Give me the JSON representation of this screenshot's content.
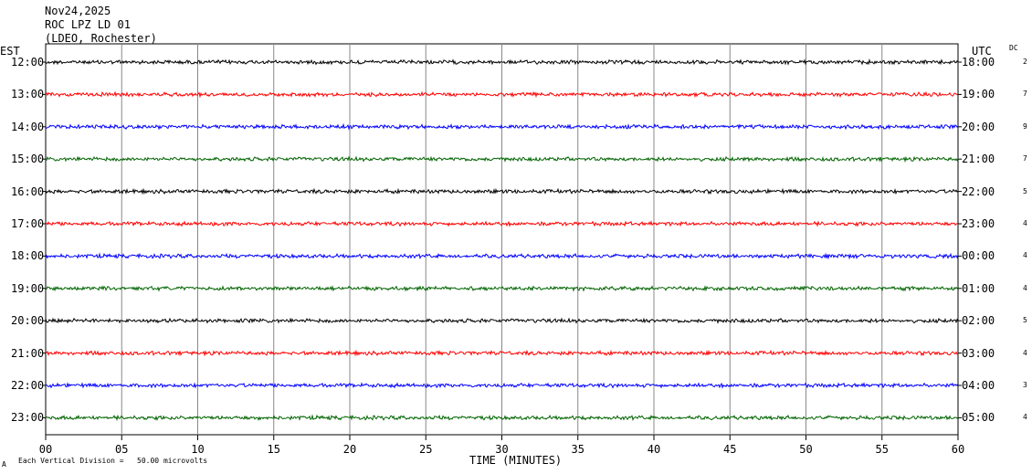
{
  "header": {
    "date": "Nov24,2025",
    "station": "ROC LPZ LD 01",
    "network": "(LDEO, Rochester)"
  },
  "axes": {
    "left_zone": "EST",
    "right_zone": "UTC",
    "dc_label": "DC",
    "xlabel": "TIME (MINUTES)",
    "footer": "Each Vertical Division =   50.00 microvolts",
    "footer_mark": "A"
  },
  "chart_data": {
    "type": "line",
    "title": "",
    "xlabel": "TIME (MINUTES)",
    "xlim": [
      0,
      60
    ],
    "x_ticks": [
      "00",
      "05",
      "10",
      "15",
      "20",
      "25",
      "30",
      "35",
      "40",
      "45",
      "50",
      "55",
      "60"
    ],
    "grid": true,
    "rows": [
      {
        "est": "12:00",
        "utc": "18:00",
        "dc": "2",
        "color": "#000000"
      },
      {
        "est": "13:00",
        "utc": "19:00",
        "dc": "7",
        "color": "#ff0000"
      },
      {
        "est": "14:00",
        "utc": "20:00",
        "dc": "9",
        "color": "#0000ff"
      },
      {
        "est": "15:00",
        "utc": "21:00",
        "dc": "7",
        "color": "#006400"
      },
      {
        "est": "16:00",
        "utc": "22:00",
        "dc": "5",
        "color": "#000000"
      },
      {
        "est": "17:00",
        "utc": "23:00",
        "dc": "4",
        "color": "#ff0000"
      },
      {
        "est": "18:00",
        "utc": "00:00",
        "dc": "4",
        "color": "#0000ff"
      },
      {
        "est": "19:00",
        "utc": "01:00",
        "dc": "4",
        "color": "#006400"
      },
      {
        "est": "20:00",
        "utc": "02:00",
        "dc": "5",
        "color": "#000000"
      },
      {
        "est": "21:00",
        "utc": "03:00",
        "dc": "4",
        "color": "#ff0000"
      },
      {
        "est": "22:00",
        "utc": "04:00",
        "dc": "3",
        "color": "#0000ff"
      },
      {
        "est": "23:00",
        "utc": "05:00",
        "dc": "4",
        "color": "#006400"
      }
    ]
  }
}
